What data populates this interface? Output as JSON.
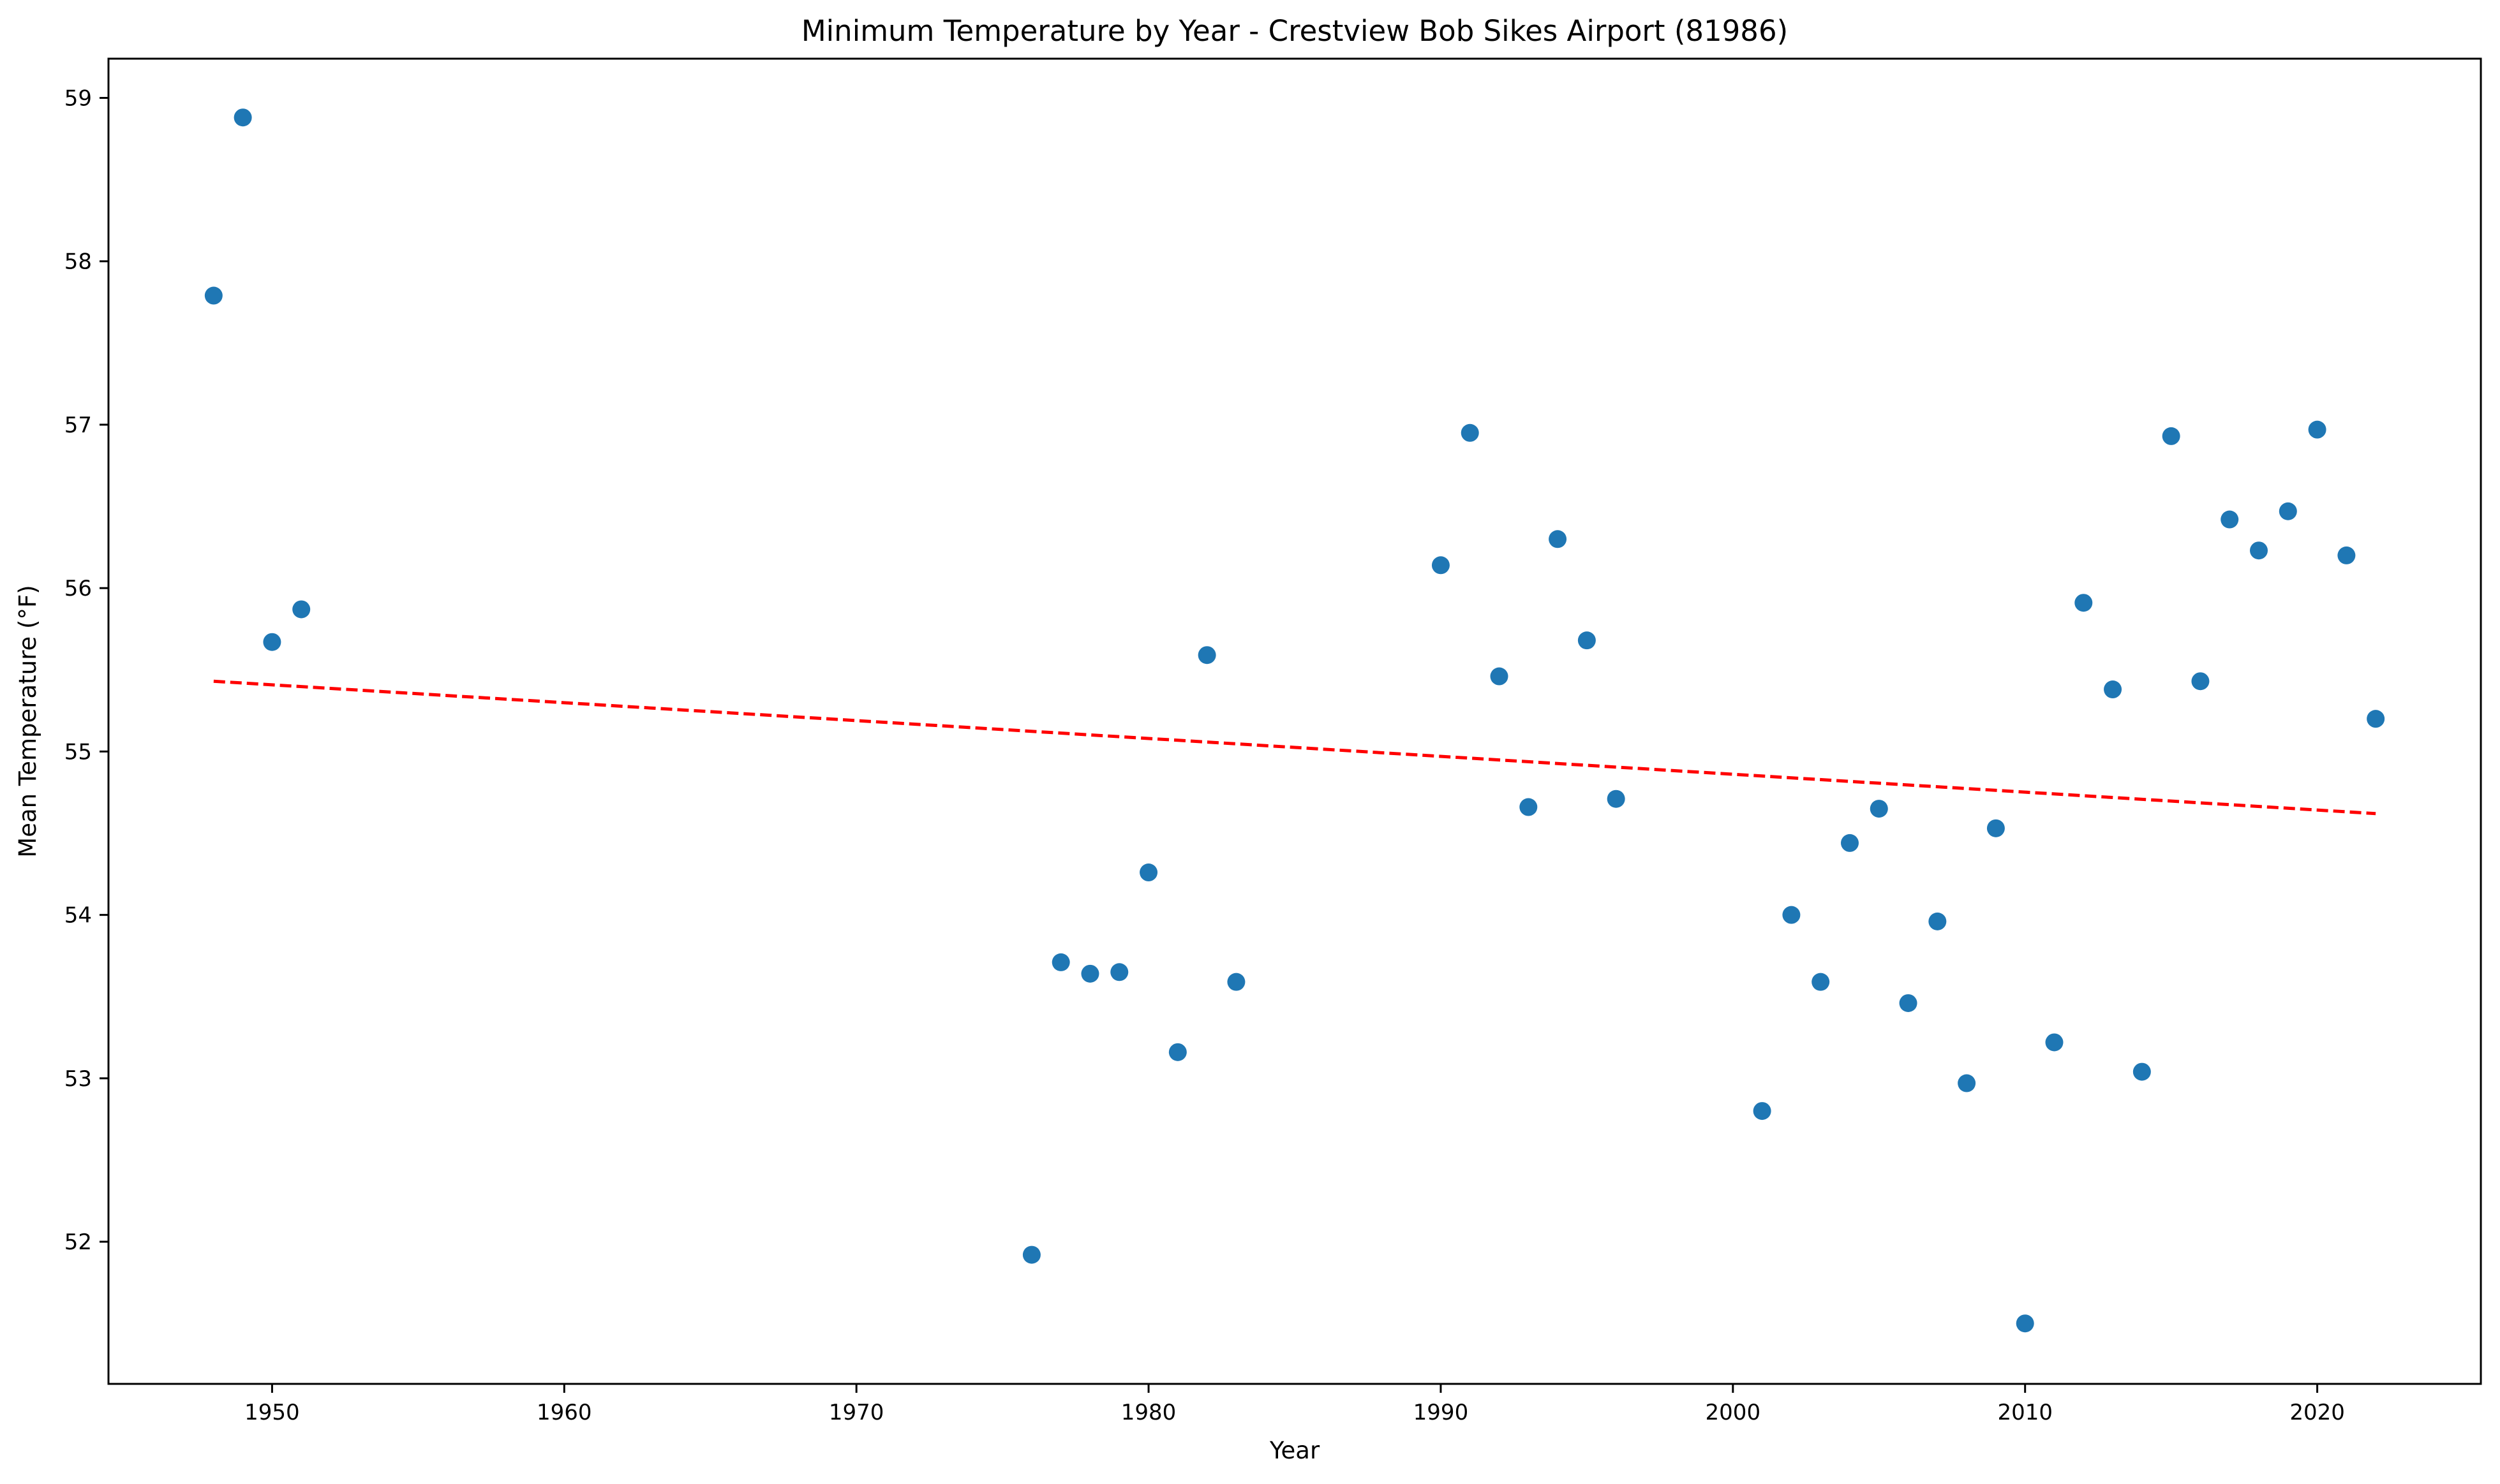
{
  "chart_data": {
    "type": "scatter",
    "title": "Minimum Temperature by Year - Crestview Bob Sikes Airport (81986)",
    "xlabel": "Year",
    "ylabel": "Mean Temperature (°F)",
    "xlim": [
      1944.4,
      2025.6
    ],
    "ylim": [
      51.13,
      59.24
    ],
    "x_ticks": [
      1950,
      1960,
      1970,
      1980,
      1990,
      2000,
      2010,
      2020
    ],
    "y_ticks": [
      52,
      53,
      54,
      55,
      56,
      57,
      58,
      59
    ],
    "grid": false,
    "series": [
      {
        "marker": "circle",
        "color": "#1f77b4",
        "x": [
          1948,
          1949,
          1950,
          1951,
          1976,
          1977,
          1978,
          1979,
          1980,
          1981,
          1982,
          1983,
          1990,
          1991,
          1992,
          1993,
          1994,
          1995,
          1996,
          2001,
          2002,
          2003,
          2004,
          2005,
          2006,
          2007,
          2008,
          2009,
          2010,
          2011,
          2012,
          2013,
          2014,
          2015,
          2016,
          2017,
          2018,
          2019,
          2020,
          2021,
          2022
        ],
        "y": [
          57.79,
          58.88,
          55.67,
          55.87,
          51.92,
          53.71,
          53.64,
          53.65,
          54.26,
          53.16,
          55.59,
          53.59,
          56.14,
          56.95,
          55.46,
          54.66,
          56.3,
          55.68,
          54.71,
          52.8,
          54.0,
          53.59,
          54.44,
          54.65,
          53.46,
          53.96,
          52.97,
          54.53,
          51.5,
          53.22,
          55.91,
          55.38,
          53.04,
          56.93,
          55.43,
          56.42,
          56.23,
          56.47,
          56.97,
          56.2,
          55.2
        ]
      }
    ],
    "trendline": {
      "style": "dashed",
      "color": "#ff0000",
      "x": [
        1948,
        2022
      ],
      "y": [
        55.43,
        54.62
      ]
    }
  }
}
